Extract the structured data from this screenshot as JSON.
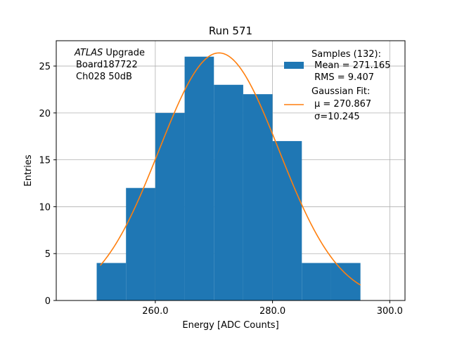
{
  "chart_data": {
    "type": "histogram",
    "title": "Run 571",
    "xlabel": "Energy [ADC Counts]",
    "ylabel": "Entries",
    "xlim": [
      243.1,
      302.6
    ],
    "ylim": [
      0,
      27.7
    ],
    "xticks": [
      260.0,
      280.0,
      300.0
    ],
    "xtick_labels": [
      "260.0",
      "280.0",
      "300.0"
    ],
    "yticks": [
      0,
      5,
      10,
      15,
      20,
      25
    ],
    "ytick_labels": [
      "0",
      "5",
      "10",
      "15",
      "20",
      "25"
    ],
    "grid": true,
    "bins": [
      {
        "x0": 250,
        "x1": 255,
        "count": 4
      },
      {
        "x0": 255,
        "x1": 260,
        "count": 12
      },
      {
        "x0": 260,
        "x1": 265,
        "count": 20
      },
      {
        "x0": 265,
        "x1": 270,
        "count": 26
      },
      {
        "x0": 270,
        "x1": 275,
        "count": 23
      },
      {
        "x0": 275,
        "x1": 280,
        "count": 22
      },
      {
        "x0": 280,
        "x1": 285,
        "count": 17
      },
      {
        "x0": 285,
        "x1": 290,
        "count": 4
      },
      {
        "x0": 290,
        "x1": 295,
        "count": 4
      }
    ],
    "fit": {
      "type": "gaussian",
      "mu": 270.867,
      "sigma": 10.245,
      "amplitude": 26.4,
      "x_range": [
        250.6,
        295.0
      ]
    },
    "colors": {
      "hist": "#1f77b4",
      "fit": "#ff7f0e",
      "grid": "#b0b0b0"
    },
    "legend": {
      "placement": "top-right",
      "entries": [
        {
          "lines": [
            "Samples (132):",
            " Mean = 271.165",
            " RMS = 9.407"
          ]
        },
        {
          "lines": [
            "Gaussian Fit:",
            "μ = 270.867",
            "σ=10.245"
          ]
        }
      ]
    },
    "annotation": {
      "italic": "ATLAS",
      "rest": " Upgrade",
      "lines": [
        " Board187722",
        " Ch028 50dB"
      ]
    }
  }
}
